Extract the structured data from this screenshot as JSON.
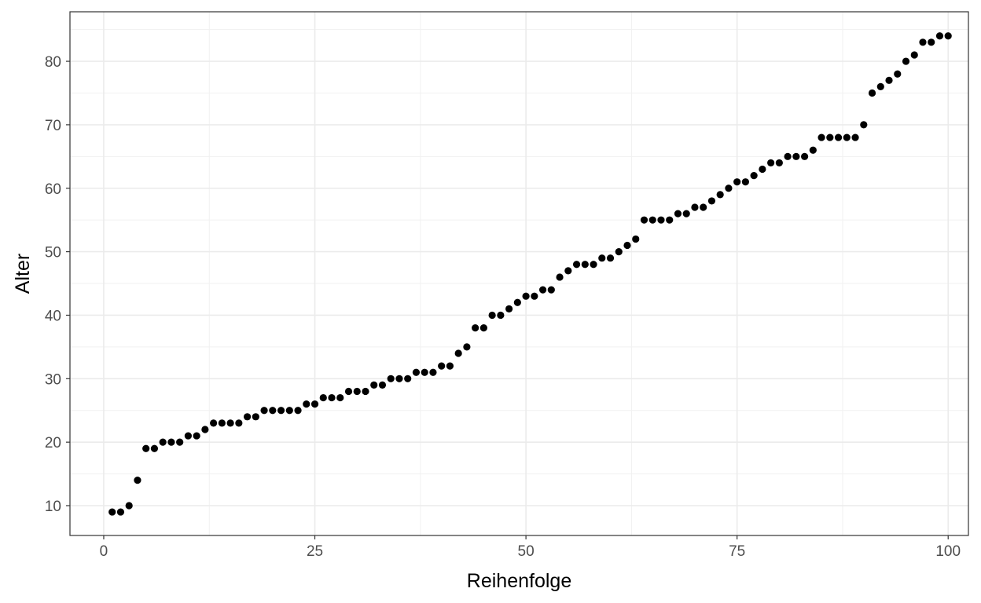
{
  "chart_data": {
    "type": "scatter",
    "title": "",
    "xlabel": "Reihenfolge",
    "ylabel": "Alter",
    "xlim": [
      -4,
      102.4
    ],
    "ylim": [
      5.3,
      87.8
    ],
    "x_ticks": [
      0,
      25,
      50,
      75,
      100
    ],
    "y_ticks": [
      10,
      20,
      30,
      40,
      50,
      60,
      70,
      80
    ],
    "x_tick_labels": [
      "0",
      "25",
      "50",
      "75",
      "100"
    ],
    "y_tick_labels": [
      "10",
      "20",
      "30",
      "40",
      "50",
      "60",
      "70",
      "80"
    ],
    "grid": true,
    "legend": "none",
    "point_color": "#000000",
    "series": [
      {
        "x": [
          1,
          2,
          3,
          4,
          5,
          6,
          7,
          8,
          9,
          10,
          11,
          12,
          13,
          14,
          15,
          16,
          17,
          18,
          19,
          20,
          21,
          22,
          23,
          24,
          25,
          26,
          27,
          28,
          29,
          30,
          31,
          32,
          33,
          34,
          35,
          36,
          37,
          38,
          39,
          40,
          41,
          42,
          43,
          44,
          45,
          46,
          47,
          48,
          49,
          50,
          51,
          52,
          53,
          54,
          55,
          56,
          57,
          58,
          59,
          60,
          61,
          62,
          63,
          64,
          65,
          66,
          67,
          68,
          69,
          70,
          71,
          72,
          73,
          74,
          75,
          76,
          77,
          78,
          79,
          80,
          81,
          82,
          83,
          84,
          85,
          86,
          87,
          88,
          89,
          90,
          91,
          92,
          93,
          94,
          95,
          96,
          97,
          98,
          99,
          100
        ],
        "y": [
          9,
          9,
          10,
          14,
          19,
          19,
          20,
          20,
          20,
          21,
          21,
          22,
          23,
          23,
          23,
          23,
          24,
          24,
          25,
          25,
          25,
          25,
          25,
          26,
          26,
          27,
          27,
          27,
          28,
          28,
          28,
          29,
          29,
          30,
          30,
          30,
          31,
          31,
          31,
          32,
          32,
          34,
          35,
          38,
          38,
          40,
          40,
          41,
          42,
          43,
          43,
          44,
          44,
          46,
          47,
          48,
          48,
          48,
          49,
          49,
          50,
          51,
          52,
          55,
          55,
          55,
          55,
          56,
          56,
          57,
          57,
          58,
          59,
          60,
          61,
          61,
          62,
          63,
          64,
          64,
          65,
          65,
          65,
          66,
          68,
          68,
          68,
          68,
          68,
          70,
          75,
          76,
          77,
          78,
          80,
          81,
          83,
          83,
          84,
          84
        ]
      }
    ]
  }
}
